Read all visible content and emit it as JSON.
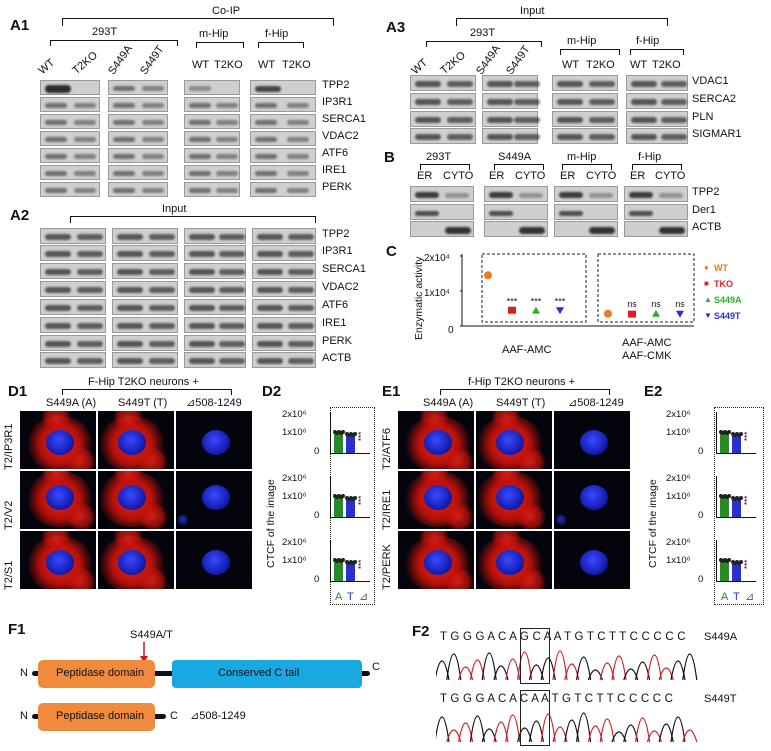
{
  "panels": {
    "a1": "A1",
    "a2": "A2",
    "a3": "A3",
    "b": "B",
    "c": "C",
    "d1": "D1",
    "d2": "D2",
    "e1": "E1",
    "e2": "E2",
    "f1": "F1",
    "f2": "F2"
  },
  "a1": {
    "title": "Co-IP",
    "group_293t": "293T",
    "group_mhip": "m-Hip",
    "group_fhip": "f-Hip",
    "lanes": [
      "WT",
      "T2KO",
      "S449A",
      "S449T",
      "WT",
      "T2KO",
      "WT",
      "T2KO"
    ],
    "proteins": [
      "TPP2",
      "IP3R1",
      "SERCA1",
      "VDAC2",
      "ATF6",
      "IRE1",
      "PERK"
    ]
  },
  "a2": {
    "title": "Input",
    "proteins": [
      "TPP2",
      "IP3R1",
      "SERCA1",
      "VDAC2",
      "ATF6",
      "IRE1",
      "PERK",
      "ACTB"
    ]
  },
  "a3": {
    "title": "Input",
    "group_293t": "293T",
    "group_mhip": "m-Hip",
    "group_fhip": "f-Hip",
    "lanes": [
      "WT",
      "T2KO",
      "S449A",
      "S449T",
      "WT",
      "T2KO",
      "WT",
      "T2KO"
    ],
    "proteins": [
      "VDAC1",
      "SERCA2",
      "PLN",
      "SIGMAR1"
    ]
  },
  "b": {
    "groups": [
      "293T",
      "S449A",
      "m-Hip",
      "f-Hip"
    ],
    "er": "ER",
    "cyto": "CYTO",
    "proteins": [
      "TPP2",
      "Der1",
      "ACTB"
    ]
  },
  "c": {
    "ylabel": "Enzymatic activity",
    "yticks": [
      "2x10⁴",
      "1x10⁴",
      "0"
    ],
    "group1": "AAF-AMC",
    "group2_line1": "AAF-AMC",
    "group2_line2": "AAF-CMK",
    "stars": "***",
    "ns": "ns",
    "colors": {
      "WT": "#f07a1a",
      "TKO": "#e02020",
      "S449A": "#2ab02a",
      "S449T": "#2a30d0"
    }
  },
  "chart_data": {
    "type": "scatter",
    "title": "",
    "xlabel": "",
    "ylabel": "Enzymatic activity",
    "ylim": [
      0,
      20000
    ],
    "categories": [
      "AAF-AMC",
      "AAF-AMC AAF-CMK"
    ],
    "series": [
      {
        "name": "WT",
        "values": [
          14500,
          3500
        ]
      },
      {
        "name": "TKO",
        "values": [
          4500,
          3400
        ]
      },
      {
        "name": "S449A",
        "values": [
          4400,
          3500
        ]
      },
      {
        "name": "S449T",
        "values": [
          4500,
          3500
        ]
      }
    ],
    "legend": "right",
    "annotations": [
      "***",
      "***",
      "***",
      "ns",
      "ns",
      "ns"
    ]
  },
  "d1": {
    "header": "F-Hip T2KO neurons +",
    "cols": [
      "S449A (A)",
      "S449T (T)",
      "⊿508-1249"
    ],
    "rows": [
      "T2/IP3R1",
      "T2/V2",
      "T2/S1"
    ]
  },
  "e1": {
    "header": "f-Hip T2KO neurons +",
    "cols": [
      "S449A (A)",
      "S449T (T)",
      "⊿508-1249"
    ],
    "rows": [
      "T2/ATF6",
      "T2/IRE1",
      "T2/PERK"
    ]
  },
  "d2": {
    "ylabel": "CTCF of the image",
    "yticks": [
      "2x10⁶",
      "1x10⁶",
      "0"
    ],
    "xcats": [
      "A",
      "T",
      "⊿"
    ],
    "stars": "***"
  },
  "f1": {
    "mutation": "S449A/T",
    "domain1": "Peptidase domain",
    "domain2": "Conserved C tail",
    "n": "N",
    "c": "C",
    "deletion": "⊿508-1249"
  },
  "f2": {
    "seq1": "T G G G A C A G C A A T G T C T T C C C C C",
    "label1": "S449A",
    "seq2": "T G G G A C A C A A T G T C T T C C C C C",
    "label2": "S449T"
  }
}
